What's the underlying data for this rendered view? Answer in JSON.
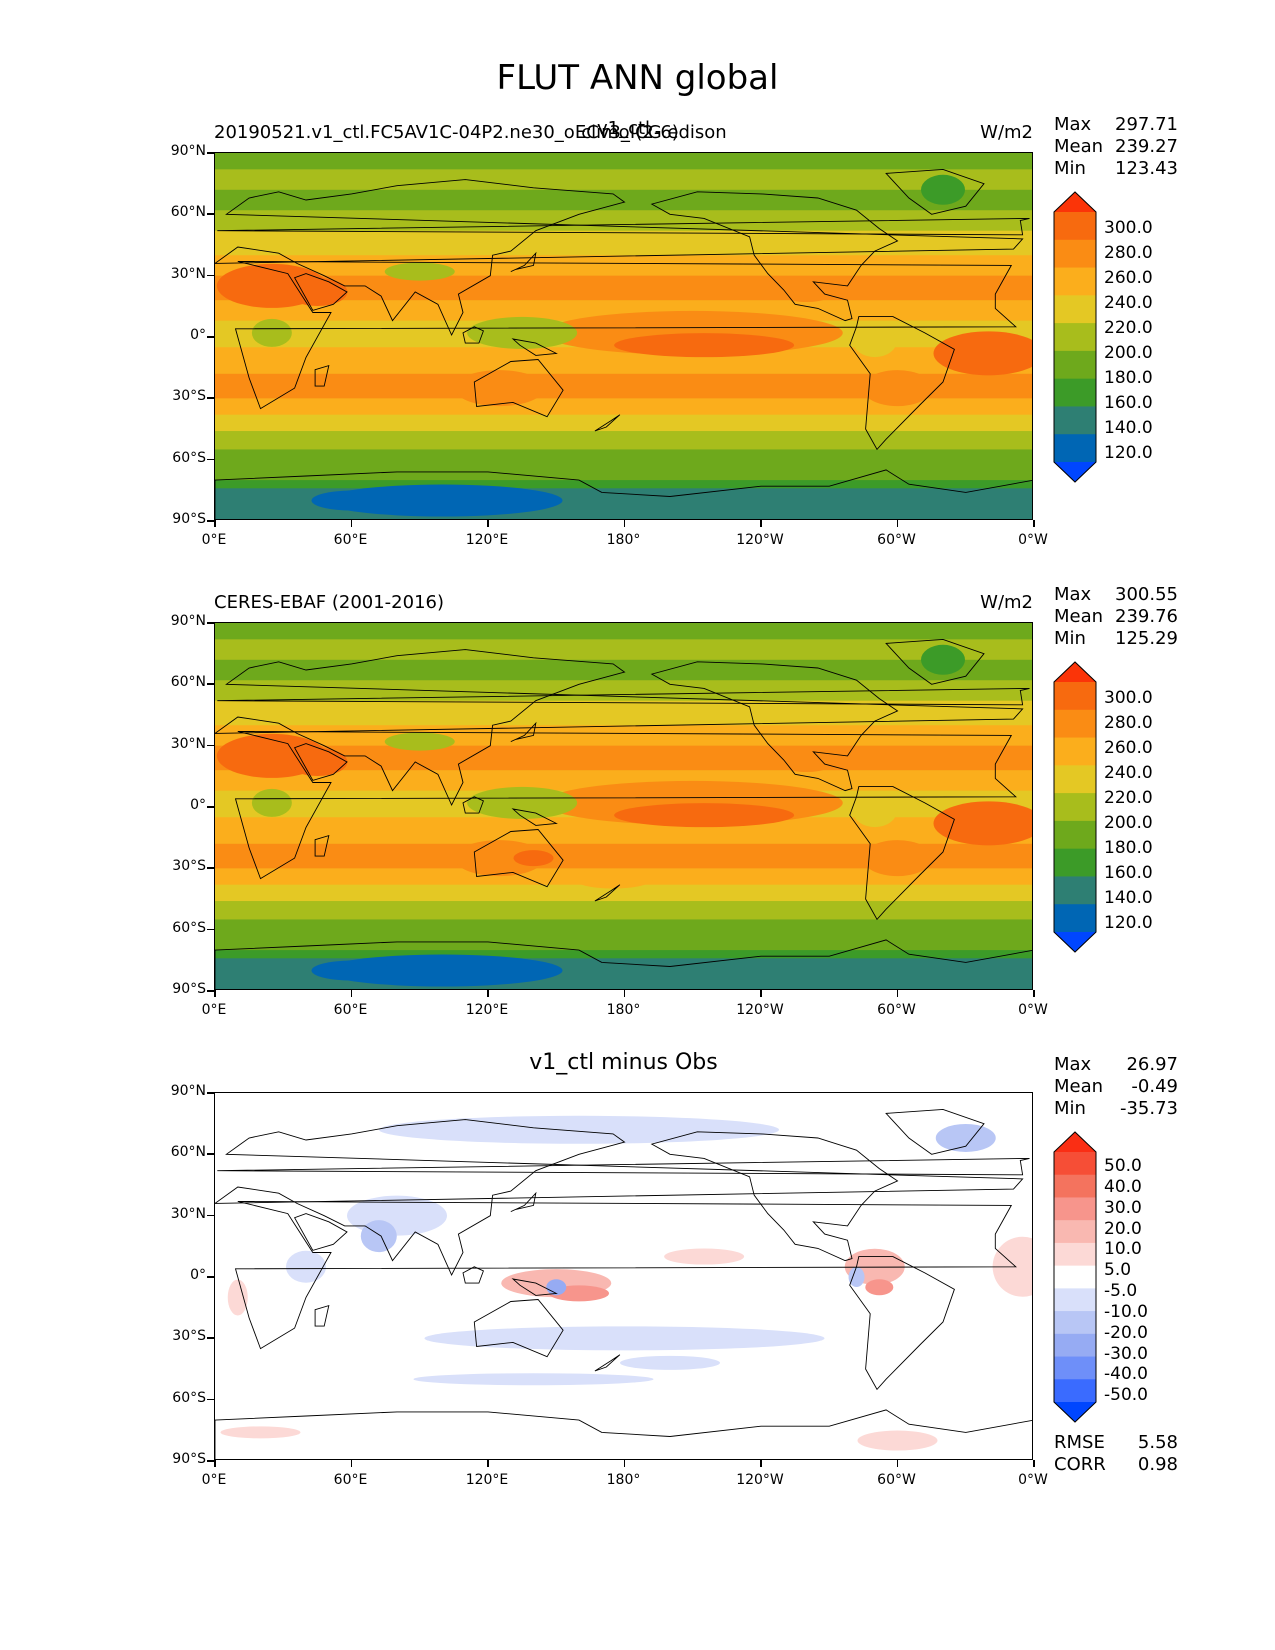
{
  "title": "FLUT ANN global",
  "colors": {
    "abs": [
      "#0046ff",
      "#0066b4",
      "#2e7f73",
      "#3c9b28",
      "#6ea91c",
      "#a8bd1c",
      "#e4c824",
      "#fbae1c",
      "#fa8c14",
      "#f76a0f",
      "#fb3408"
    ],
    "diff": [
      "#0046ff",
      "#3a6bff",
      "#6e8ff9",
      "#96abf3",
      "#b8c6f5",
      "#d9e0fa",
      "#ffffff",
      "#fcd9d6",
      "#f9b8b1",
      "#f7958c",
      "#f4735e",
      "#f64e36",
      "#fa2e14"
    ],
    "land_line": "#000000"
  },
  "panels": [
    {
      "id": "test",
      "left_caption": "20190521.v1_ctl.FC5AV1C-04P2.ne30_oECv3_ICG.edison",
      "center_caption": "v1_ctl",
      "right_caption": "climo (2-6)",
      "units": "W/m2",
      "stats": {
        "Max": "297.71",
        "Mean": "239.27",
        "Min": "123.43"
      },
      "colorbar": [
        "300.0",
        "280.0",
        "260.0",
        "240.0",
        "220.0",
        "200.0",
        "180.0",
        "160.0",
        "140.0",
        "120.0"
      ]
    },
    {
      "id": "ref",
      "left_caption": "CERES-EBAF (2001-2016)",
      "center_caption": "",
      "right_caption": "",
      "units": "W/m2",
      "stats": {
        "Max": "300.55",
        "Mean": "239.76",
        "Min": "125.29"
      },
      "colorbar": [
        "300.0",
        "280.0",
        "260.0",
        "240.0",
        "220.0",
        "200.0",
        "180.0",
        "160.0",
        "140.0",
        "120.0"
      ]
    },
    {
      "id": "diff",
      "left_caption": "",
      "center_caption": "v1_ctl minus Obs",
      "right_caption": "",
      "units": "",
      "stats": {
        "Max": "26.97",
        "Mean": "-0.49",
        "Min": "-35.73"
      },
      "colorbar": [
        "50.0",
        "40.0",
        "30.0",
        "20.0",
        "10.0",
        "5.0",
        "-5.0",
        "-10.0",
        "-20.0",
        "-30.0",
        "-40.0",
        "-50.0"
      ],
      "rmse": {
        "label": "RMSE",
        "value": "5.58"
      },
      "corr": {
        "label": "CORR",
        "value": "0.98"
      }
    }
  ],
  "axes": {
    "ylabels": [
      "90°N",
      "60°N",
      "30°N",
      "0°",
      "30°S",
      "60°S",
      "90°S"
    ],
    "xlabels": [
      "0°E",
      "60°E",
      "120°E",
      "180°",
      "120°W",
      "60°W",
      "0°W"
    ]
  },
  "chart_data": [
    {
      "type": "heatmap",
      "panel": "test",
      "variable": "FLUT",
      "units": "W/m2",
      "levels": [
        120,
        140,
        160,
        180,
        200,
        220,
        240,
        260,
        280,
        300
      ],
      "zonal_mean_by_lat": {
        "lat": [
          90,
          60,
          30,
          0,
          -30,
          -60,
          -90
        ],
        "value": [
          185,
          210,
          255,
          245,
          260,
          210,
          140
        ]
      },
      "xlim": [
        0,
        360
      ],
      "ylim": [
        -90,
        90
      ],
      "stats": {
        "max": 297.71,
        "mean": 239.27,
        "min": 123.43
      }
    },
    {
      "type": "heatmap",
      "panel": "ref",
      "variable": "FLUT",
      "units": "W/m2",
      "levels": [
        120,
        140,
        160,
        180,
        200,
        220,
        240,
        260,
        280,
        300
      ],
      "zonal_mean_by_lat": {
        "lat": [
          90,
          60,
          30,
          0,
          -30,
          -60,
          -90
        ],
        "value": [
          190,
          215,
          260,
          240,
          262,
          212,
          145
        ]
      },
      "xlim": [
        0,
        360
      ],
      "ylim": [
        -90,
        90
      ],
      "stats": {
        "max": 300.55,
        "mean": 239.76,
        "min": 125.29
      }
    },
    {
      "type": "heatmap",
      "panel": "diff",
      "variable": "FLUT difference",
      "levels": [
        -50,
        -40,
        -30,
        -20,
        -10,
        -5,
        5,
        10,
        20,
        30,
        40,
        50
      ],
      "xlim": [
        0,
        360
      ],
      "ylim": [
        -90,
        90
      ],
      "stats": {
        "max": 26.97,
        "mean": -0.49,
        "min": -35.73,
        "rmse": 5.58,
        "corr": 0.98
      }
    }
  ]
}
